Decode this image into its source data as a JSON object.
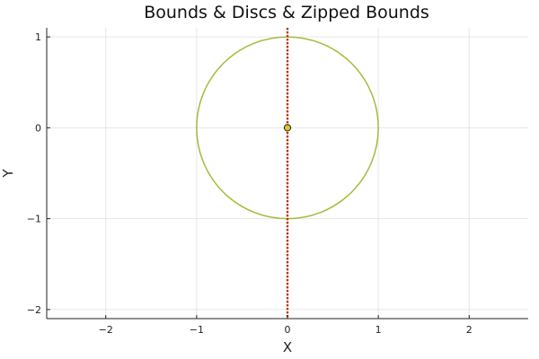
{
  "chart_data": {
    "type": "line",
    "title": "Bounds & Discs & Zipped Bounds",
    "xlabel": "X",
    "ylabel": "Y",
    "xlim": [
      -2.65,
      2.65
    ],
    "ylim": [
      -2.1,
      1.1
    ],
    "xticks": [
      -2,
      -1,
      0,
      1,
      2
    ],
    "xtick_labels": [
      "−2",
      "−1",
      "0",
      "1",
      "2"
    ],
    "yticks": [
      -2,
      -1,
      0,
      1
    ],
    "ytick_labels": [
      "−2",
      "−1",
      "0",
      "1"
    ],
    "grid": true,
    "legend": false,
    "series": [
      {
        "kind": "circle",
        "center": [
          0,
          0
        ],
        "radius": 1,
        "color": "#9fbd3a"
      },
      {
        "kind": "vline",
        "x": 0,
        "y_from": -2.1,
        "y_to": 1.1,
        "color": "#b83a0e",
        "dash": "dotted"
      },
      {
        "kind": "point",
        "x": 0,
        "y": 0,
        "color": "#e2c31f"
      }
    ]
  }
}
